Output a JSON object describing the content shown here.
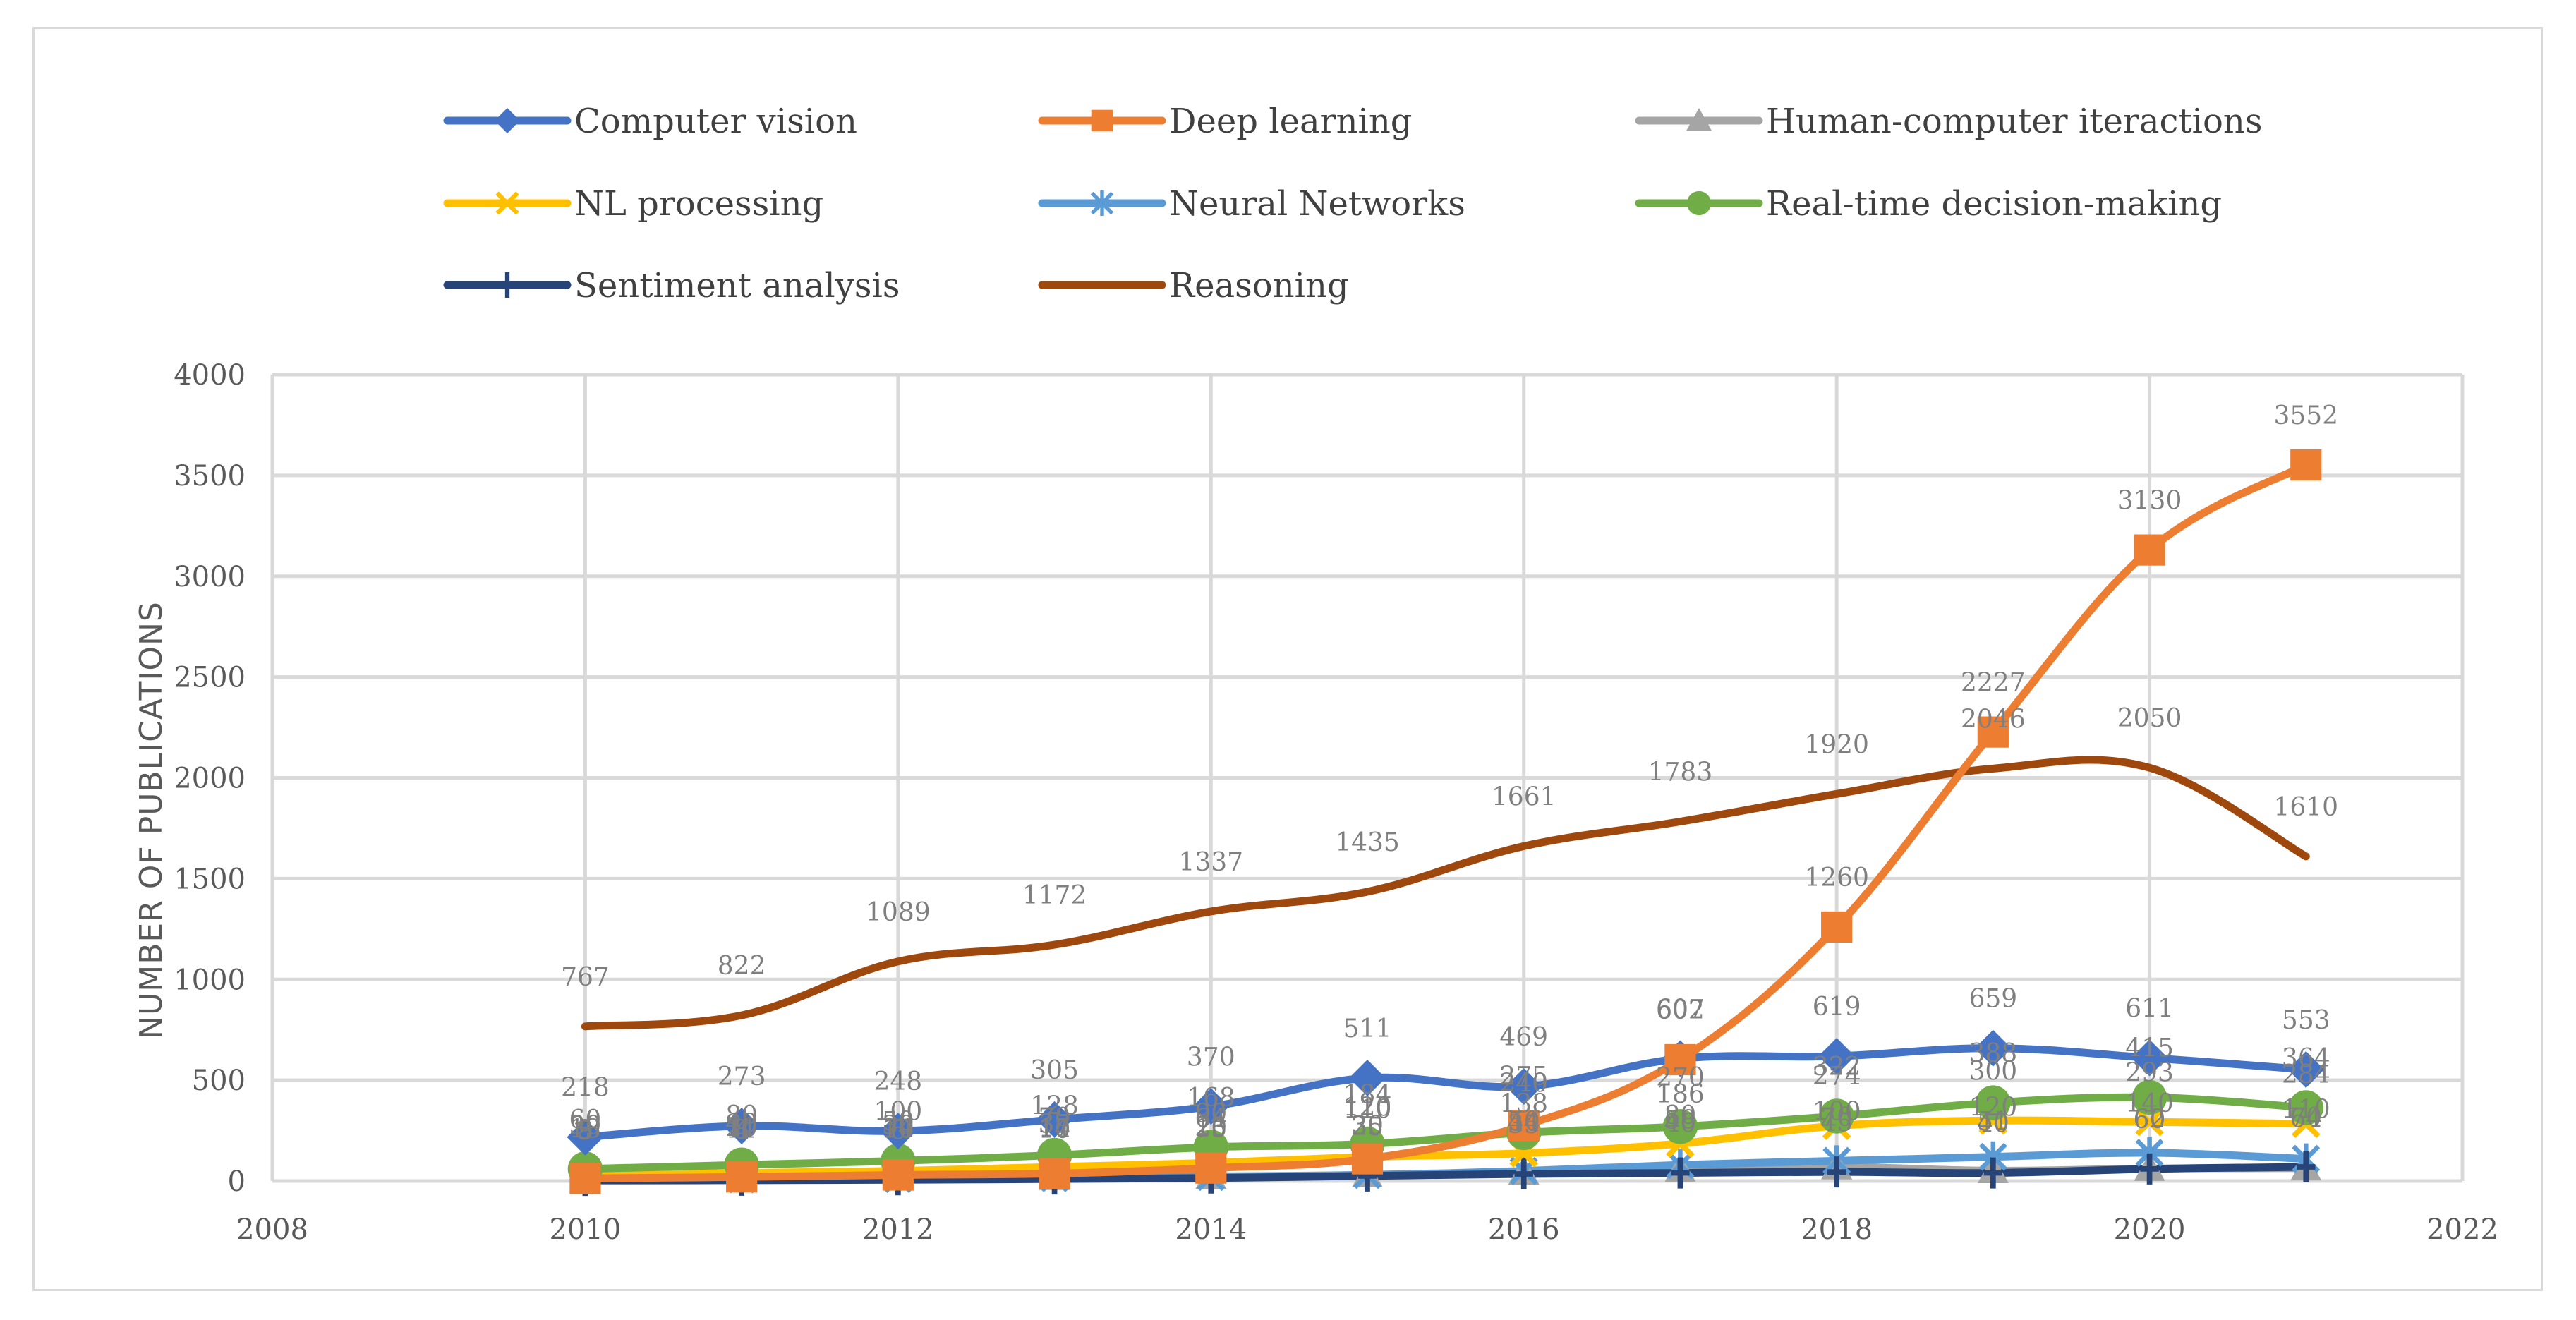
{
  "chart_data": {
    "type": "line",
    "title": "",
    "xlabel": "",
    "ylabel": "NUMBER OF  PUBLICATIONS",
    "xlim": [
      2008,
      2022
    ],
    "ylim": [
      0,
      4000
    ],
    "x_ticks": [
      "2008",
      "2010",
      "2012",
      "2014",
      "2016",
      "2018",
      "2020",
      "2022"
    ],
    "y_ticks": [
      "0",
      "500",
      "1000",
      "1500",
      "2000",
      "2500",
      "3000",
      "3500",
      "4000"
    ],
    "grid": true,
    "legend_position": "top",
    "x": [
      2010,
      2011,
      2012,
      2013,
      2014,
      2015,
      2016,
      2017,
      2018,
      2019,
      2020,
      2021
    ],
    "series": [
      {
        "name": "Computer vision",
        "color": "#4472c4",
        "marker": "diamond",
        "values": [
          218,
          273,
          248,
          305,
          370,
          511,
          469,
          607,
          619,
          659,
          611,
          553
        ],
        "labels": [
          "218",
          "273",
          "248",
          "305",
          "370",
          "511",
          "469",
          "607",
          "619",
          "659",
          "611",
          "553"
        ]
      },
      {
        "name": "Deep learning",
        "color": "#ed7d31",
        "marker": "square",
        "values": [
          13,
          20,
          30,
          37,
          64,
          110,
          275,
          602,
          1260,
          2227,
          3130,
          3552
        ],
        "labels": [
          "13",
          "20",
          "30",
          "37",
          "64",
          "110",
          "275",
          "602",
          "1260",
          "2227",
          "3130",
          "3552"
        ]
      },
      {
        "name": "Human-computer iteractions",
        "color": "#a5a5a5",
        "marker": "triangle",
        "values": [
          9,
          11,
          14,
          17,
          23,
          30,
          44,
          58,
          70,
          51,
          62,
          64
        ],
        "labels": [
          "9",
          "11",
          "14",
          "17",
          "23",
          "30",
          "44",
          "58",
          "70",
          "51",
          "62",
          "64"
        ]
      },
      {
        "name": "NL processing",
        "color": "#ffc000",
        "marker": "x",
        "values": [
          30,
          40,
          50,
          70,
          90,
          120,
          138,
          186,
          274,
          300,
          293,
          284
        ],
        "labels": [
          "30",
          "40",
          "50",
          "70",
          "90",
          "120",
          "138",
          "186",
          "274",
          "300",
          "293",
          "284"
        ]
      },
      {
        "name": "Neural Networks",
        "color": "#5b9bd5",
        "marker": "star",
        "values": [
          5,
          8,
          10,
          14,
          20,
          30,
          50,
          80,
          100,
          120,
          140,
          110
        ],
        "labels": [
          "5",
          "8",
          "10",
          "14",
          "20",
          "30",
          "50",
          "80",
          "100",
          "120",
          "140",
          "110"
        ]
      },
      {
        "name": "Real-time decision-making",
        "color": "#70ad47",
        "marker": "circle",
        "values": [
          60,
          80,
          100,
          128,
          168,
          184,
          240,
          270,
          322,
          388,
          415,
          364
        ],
        "labels": [
          "60",
          "80",
          "100",
          "128",
          "168",
          "184",
          "240",
          "270",
          "322",
          "388",
          "415",
          "364"
        ]
      },
      {
        "name": "Sentiment analysis",
        "color": "#264478",
        "marker": "plus",
        "values": [
          3,
          4,
          6,
          10,
          15,
          25,
          35,
          40,
          45,
          40,
          60,
          70
        ],
        "labels": [
          "3",
          "4",
          "6",
          "10",
          "15",
          "25",
          "35",
          "40",
          "45",
          "40",
          "60",
          "70"
        ]
      },
      {
        "name": "Reasoning",
        "color": "#9e480e",
        "marker": "none",
        "values": [
          767,
          822,
          1089,
          1172,
          1337,
          1435,
          1661,
          1783,
          1920,
          2046,
          2050,
          1610
        ],
        "labels": [
          "767",
          "822",
          "1089",
          "1172",
          "1337",
          "1435",
          "1661",
          "1783",
          "1920",
          "2046",
          "2050",
          "1610"
        ]
      }
    ]
  }
}
